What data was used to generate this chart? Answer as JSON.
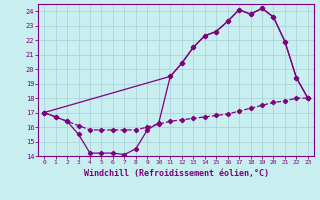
{
  "xlabel": "Windchill (Refroidissement éolien,°C)",
  "bg_color": "#c8eef0",
  "line_color": "#800080",
  "grid_color": "#b0d8dc",
  "xlim": [
    -0.5,
    23.5
  ],
  "ylim": [
    14,
    24.5
  ],
  "xticks": [
    0,
    1,
    2,
    3,
    4,
    5,
    6,
    7,
    8,
    9,
    10,
    11,
    12,
    13,
    14,
    15,
    16,
    17,
    18,
    19,
    20,
    21,
    22,
    23
  ],
  "yticks": [
    14,
    15,
    16,
    17,
    18,
    19,
    20,
    21,
    22,
    23,
    24
  ],
  "line_dashed_x": [
    0,
    1,
    2,
    3,
    4,
    5,
    6,
    7,
    8,
    9,
    10,
    11,
    12,
    13,
    14,
    15,
    16,
    17,
    18,
    19,
    20,
    21,
    22,
    23
  ],
  "line_dashed_y": [
    17.0,
    16.7,
    16.4,
    16.1,
    15.8,
    15.8,
    15.8,
    15.8,
    15.8,
    16.0,
    16.2,
    16.4,
    16.5,
    16.6,
    16.7,
    16.8,
    16.9,
    17.1,
    17.3,
    17.5,
    17.7,
    17.8,
    18.0,
    18.0
  ],
  "line_upper_x": [
    0,
    1,
    2,
    3,
    4,
    5,
    6,
    7,
    8,
    9,
    10,
    11,
    12,
    13,
    14,
    15,
    16,
    17,
    18,
    19,
    20,
    21,
    22,
    23
  ],
  "line_upper_y": [
    17.0,
    16.7,
    16.4,
    15.5,
    14.2,
    14.2,
    14.2,
    14.1,
    14.5,
    15.8,
    16.3,
    19.5,
    20.4,
    21.5,
    22.3,
    22.6,
    23.3,
    24.1,
    23.8,
    24.2,
    23.6,
    21.9,
    19.4,
    18.0
  ],
  "line_diag_x": [
    0,
    11,
    12,
    13,
    14,
    15,
    16,
    17,
    18,
    19,
    20,
    21,
    22,
    23
  ],
  "line_diag_y": [
    17.0,
    19.5,
    20.4,
    21.5,
    22.3,
    22.6,
    23.3,
    24.1,
    23.8,
    24.2,
    23.6,
    21.9,
    19.4,
    18.0
  ]
}
